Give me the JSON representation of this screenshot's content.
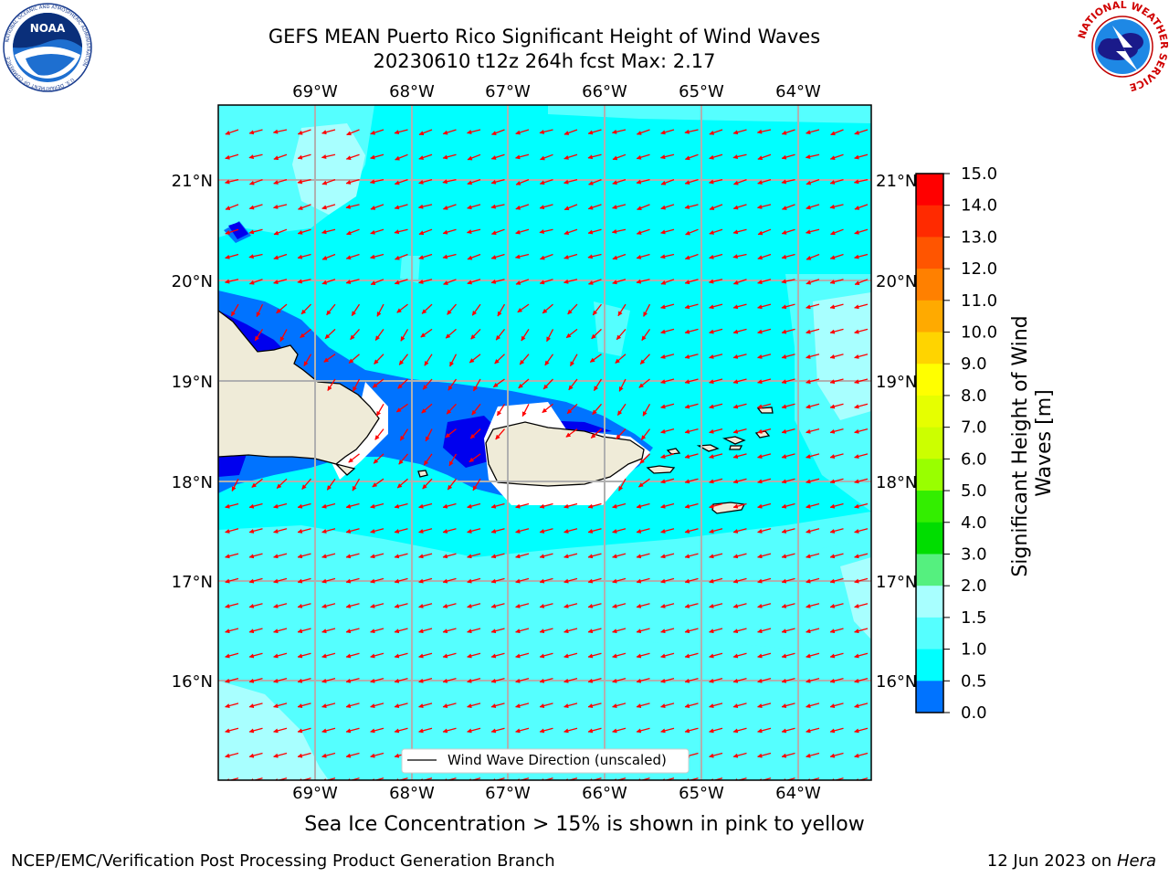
{
  "header": {
    "title_line1": "GEFS MEAN Puerto Rico Significant Height of Wind Waves",
    "title_line2": "20230610 t12z 264h fcst   Max: 2.17"
  },
  "logos": {
    "noaa_text": "NOAA",
    "noaa_ring_text": "NATIONAL OCEANIC AND ATMOSPHERIC ADMINISTRATION",
    "noaa_bottom_text": "U.S. DEPARTMENT OF COMMERCE",
    "nws_ring_text": "NATIONAL WEATHER SERVICE"
  },
  "map": {
    "lon_labels": [
      "69°W",
      "68°W",
      "67°W",
      "66°W",
      "65°W",
      "64°W"
    ],
    "lat_labels": [
      "21°N",
      "20°N",
      "19°N",
      "18°N",
      "17°N",
      "16°N"
    ],
    "legend_label": "Wind Wave Direction (unscaled)",
    "colors": {
      "ocean_1_1p5": "#00ffff",
      "ocean_1p5_2": "#55ffff",
      "ocean_2_3": "#a8ffff",
      "ocean_0p5_1": "#0073ff",
      "ocean_0_0p5": "#0000ee",
      "land": "#efebd8",
      "arrow": "#ff0000"
    }
  },
  "colorbar": {
    "title": "Significant Height of Wind Waves [m]",
    "title_line1": "Significant Height of Wind",
    "title_line2": "Waves [m]",
    "ticks": [
      "15.0",
      "14.0",
      "13.0",
      "12.0",
      "11.0",
      "10.0",
      "9.0",
      "8.0",
      "7.0",
      "6.0",
      "5.0",
      "4.0",
      "3.0",
      "2.0",
      "1.5",
      "1.0",
      "0.5",
      "0.0"
    ],
    "colors_top_to_bottom": [
      "#ff0000",
      "#ff2a00",
      "#ff5500",
      "#ff8000",
      "#ffaa00",
      "#ffd400",
      "#ffff00",
      "#e6ff00",
      "#ccff00",
      "#99ff00",
      "#33ee00",
      "#00dd00",
      "#55f07f",
      "#a8ffff",
      "#55ffff",
      "#00ffff",
      "#0073ff",
      "#0000ee"
    ]
  },
  "notes": {
    "sea_ice": "Sea Ice Concentration > 15% is shown in pink to yellow"
  },
  "footer": {
    "left": "NCEP/EMC/Verification Post Processing Product Generation Branch",
    "right_prefix": "12 Jun 2023 on ",
    "right_host": "Hera"
  }
}
